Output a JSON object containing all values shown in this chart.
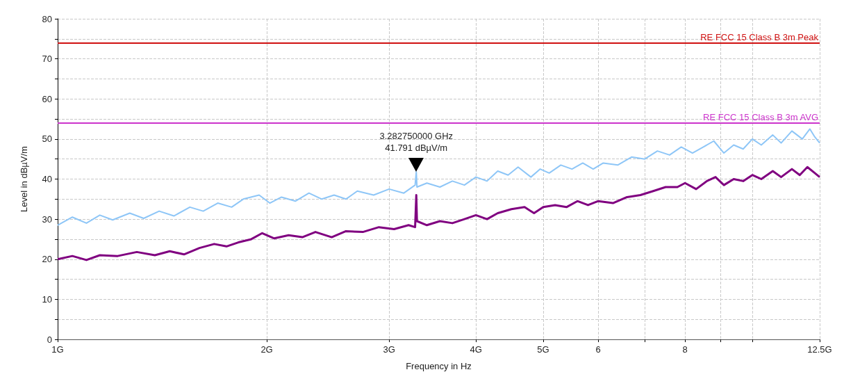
{
  "chart_data": {
    "type": "line",
    "xlabel": "Frequency in Hz",
    "ylabel": "Level in dBµV/m",
    "log": "x",
    "grid": true,
    "marker": "none",
    "line_style": "solid",
    "xlim": [
      1,
      12.5
    ],
    "xticks": [
      {
        "value": 1,
        "label": "1G"
      },
      {
        "value": 2,
        "label": "2G"
      },
      {
        "value": 3,
        "label": "3G"
      },
      {
        "value": 4,
        "label": "4G"
      },
      {
        "value": 5,
        "label": "5G"
      },
      6,
      {
        "value": 7,
        "label": null
      },
      8,
      {
        "value": 9,
        "label": null
      },
      {
        "value": 10,
        "label": null
      },
      {
        "value": 12.5,
        "label": "12.5G"
      }
    ],
    "ylim": [
      0,
      80
    ],
    "yticks": [
      0,
      {
        "value": 5,
        "label": null
      },
      10,
      {
        "value": 15,
        "label": null
      },
      20,
      {
        "value": 25,
        "label": null
      },
      30,
      {
        "value": 35,
        "label": null
      },
      40,
      {
        "value": 45,
        "label": null
      },
      50,
      {
        "value": 55,
        "label": null
      },
      60,
      {
        "value": 65,
        "label": null
      },
      70,
      {
        "value": 75,
        "label": null
      },
      80
    ],
    "series": [
      {
        "color": "#8ec6f7",
        "x": [
          1.0,
          1.05,
          1.1,
          1.15,
          1.2,
          1.27,
          1.33,
          1.4,
          1.47,
          1.55,
          1.62,
          1.7,
          1.78,
          1.85,
          1.95,
          2.02,
          2.1,
          2.2,
          2.3,
          2.4,
          2.5,
          2.6,
          2.7,
          2.85,
          3.0,
          3.15,
          3.27,
          3.28275,
          3.29,
          3.4,
          3.55,
          3.7,
          3.85,
          4.0,
          4.15,
          4.3,
          4.45,
          4.6,
          4.8,
          4.95,
          5.1,
          5.3,
          5.5,
          5.7,
          5.9,
          6.1,
          6.4,
          6.7,
          7.0,
          7.3,
          7.6,
          7.9,
          8.2,
          8.5,
          8.8,
          9.1,
          9.4,
          9.7,
          10.0,
          10.3,
          10.7,
          11.0,
          11.4,
          11.8,
          12.1,
          12.3,
          12.5
        ],
        "values": [
          28.5,
          30.5,
          29.0,
          31.0,
          29.8,
          31.5,
          30.2,
          32.0,
          30.8,
          33.0,
          32.0,
          34.0,
          33.0,
          35.0,
          36.0,
          34.0,
          35.5,
          34.5,
          36.5,
          35.0,
          36.0,
          35.0,
          37.0,
          36.0,
          37.5,
          36.5,
          38.5,
          41.8,
          38.0,
          39.0,
          38.0,
          39.5,
          38.5,
          40.5,
          39.5,
          42.0,
          41.0,
          43.0,
          40.5,
          42.5,
          41.5,
          43.5,
          42.5,
          44.0,
          42.5,
          44.0,
          43.5,
          45.5,
          45.0,
          47.0,
          46.0,
          48.0,
          46.5,
          48.0,
          49.5,
          46.5,
          48.5,
          47.5,
          50.0,
          48.5,
          51.0,
          49.0,
          52.0,
          50.0,
          52.5,
          50.5,
          49.0
        ]
      },
      {
        "color": "#800080",
        "x": [
          1.0,
          1.05,
          1.1,
          1.15,
          1.22,
          1.3,
          1.38,
          1.45,
          1.52,
          1.6,
          1.68,
          1.75,
          1.82,
          1.9,
          1.97,
          2.05,
          2.15,
          2.25,
          2.35,
          2.48,
          2.6,
          2.75,
          2.9,
          3.05,
          3.2,
          3.27,
          3.28275,
          3.29,
          3.4,
          3.55,
          3.7,
          3.85,
          4.0,
          4.15,
          4.3,
          4.5,
          4.7,
          4.85,
          5.0,
          5.2,
          5.4,
          5.6,
          5.8,
          6.0,
          6.3,
          6.6,
          6.9,
          7.2,
          7.5,
          7.8,
          8.0,
          8.3,
          8.6,
          8.85,
          9.1,
          9.4,
          9.7,
          10.0,
          10.3,
          10.7,
          11.0,
          11.4,
          11.7,
          12.0,
          12.3,
          12.5
        ],
        "values": [
          20.0,
          20.8,
          19.8,
          21.0,
          20.8,
          21.8,
          21.0,
          22.0,
          21.2,
          22.8,
          23.8,
          23.2,
          24.2,
          25.0,
          26.5,
          25.2,
          26.0,
          25.5,
          26.8,
          25.5,
          27.0,
          26.8,
          28.0,
          27.5,
          28.5,
          28.0,
          36.0,
          29.5,
          28.5,
          29.5,
          29.0,
          30.0,
          31.0,
          30.0,
          31.5,
          32.5,
          33.0,
          31.5,
          33.0,
          33.5,
          33.0,
          34.5,
          33.5,
          34.5,
          34.0,
          35.5,
          36.0,
          37.0,
          38.0,
          38.0,
          39.0,
          37.5,
          39.5,
          40.5,
          38.5,
          40.0,
          39.5,
          41.0,
          40.0,
          42.0,
          40.5,
          42.5,
          41.0,
          43.0,
          41.5,
          40.5
        ]
      }
    ],
    "ref_lines": [
      {
        "axis": "y",
        "value": 74,
        "label": "RE FCC 15 Class B 3m Peak",
        "color": "#d01010"
      },
      {
        "axis": "y",
        "value": 54,
        "label": "RE FCC 15 Class B 3m AVG",
        "color": "#cc33cc"
      }
    ],
    "annotations": [
      {
        "text": "3.282750000 GHz\n41.791 dBµV/m",
        "x": 3.28275,
        "y": 41.791
      }
    ]
  }
}
